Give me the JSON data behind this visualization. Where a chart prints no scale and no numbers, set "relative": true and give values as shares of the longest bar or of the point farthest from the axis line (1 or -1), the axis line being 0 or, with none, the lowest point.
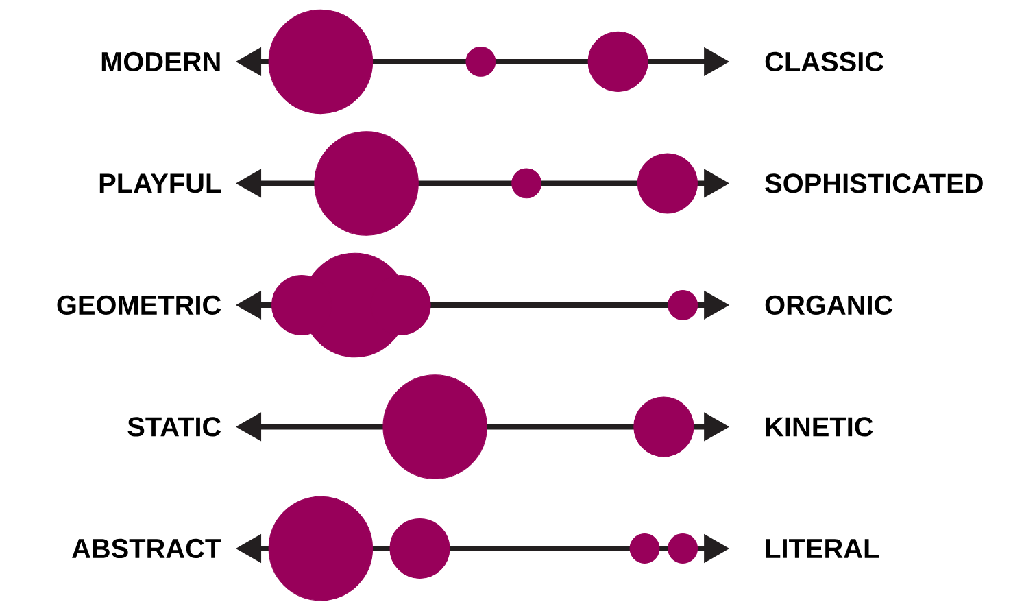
{
  "chart_data": {
    "type": "bubble",
    "relative": true,
    "orientation": "horizontal",
    "categories": [
      "MODERN",
      "PLAYFUL",
      "GEOMETRIC",
      "STATIC",
      "ABSTRACT"
    ],
    "y2_categories": [
      "CLASSIC",
      "SOPHISTICATED",
      "ORGANIC",
      "KINETIC",
      "LITERAL"
    ],
    "series": [
      {
        "color": "#98005a",
        "values": [
          0.05,
          0.17,
          0.14,
          0.35,
          0.05
        ],
        "sizes": [
          1,
          1,
          1,
          1,
          1
        ]
      },
      {
        "color": "#98005a",
        "values": [
          0.47,
          0.59,
          0,
          0.95,
          0.31
        ],
        "sizes": [
          0.08,
          0.08,
          0.33,
          0.33,
          0.33
        ]
      },
      {
        "color": "#98005a",
        "values": [
          0.83,
          0.96,
          0.26,
          null,
          0.9
        ],
        "sizes": [
          0.33,
          0.33,
          0.33,
          null,
          0.08
        ]
      },
      {
        "color": "#98005a",
        "values": [
          null,
          null,
          1,
          null,
          1
        ],
        "sizes": [
          null,
          null,
          0.08,
          null,
          0.08
        ]
      }
    ]
  }
}
